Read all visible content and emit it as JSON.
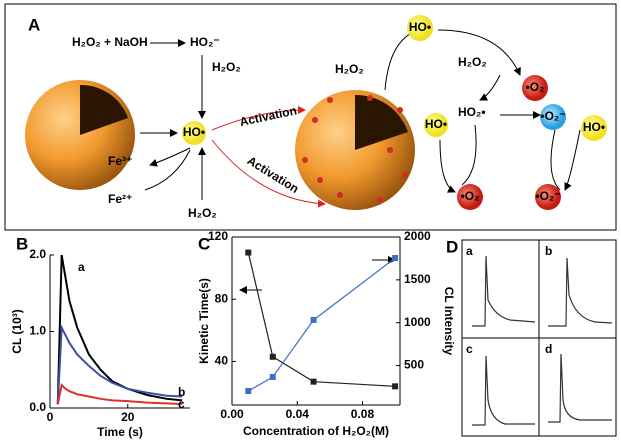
{
  "panel_a": {
    "label": "A",
    "reactant": "H₂O₂ + NaOH",
    "product": "HO₂⁻",
    "h2o2_top": "H₂O₂",
    "radical_center": "HO•",
    "fe3": "Fe³⁺",
    "fe2": "Fe²⁺",
    "h2o2_bottom": "H₂O₂",
    "activation_top": "Activation",
    "activation_bottom": "Activation",
    "h2o2_left": "H₂O₂",
    "radical_top": "HO•",
    "h2o2_right": "H₂O₂",
    "superoxide_top": "•O₂",
    "ho2": "HO₂•",
    "superoxide_anion": "•O₂⁻",
    "radical_right": "HO•",
    "radical_mid": "HO•",
    "oxygen_bottom_left": "•O₂",
    "oxygen_bottom_right": "•O₂⁻"
  },
  "chart_data": [
    {
      "type": "line",
      "panel_label": "B",
      "xlabel": "Time (s)",
      "ylabel": "CL (10³)",
      "xlim": [
        0,
        36
      ],
      "xticks": [
        0,
        20
      ],
      "ylim": [
        0,
        2.0
      ],
      "yticks": [
        {
          "value": 0,
          "label": "0.0"
        },
        {
          "value": 1,
          "label": "1.0"
        },
        {
          "value": 2,
          "label": "2.0"
        }
      ],
      "x": [
        2,
        3,
        4,
        5,
        7,
        10,
        13,
        16,
        20,
        25,
        30,
        34
      ],
      "series": [
        {
          "name": "a",
          "color": "#000000",
          "values": [
            0.05,
            2.0,
            1.7,
            1.4,
            1.05,
            0.7,
            0.5,
            0.35,
            0.25,
            0.17,
            0.12,
            0.1
          ]
        },
        {
          "name": "b",
          "color": "#3b4fa8",
          "values": [
            0.05,
            1.05,
            0.95,
            0.85,
            0.7,
            0.55,
            0.42,
            0.33,
            0.25,
            0.2,
            0.16,
            0.15
          ]
        },
        {
          "name": "c",
          "color": "#e0302a",
          "values": [
            0.05,
            0.3,
            0.25,
            0.22,
            0.18,
            0.15,
            0.12,
            0.1,
            0.09,
            0.07,
            0.06,
            0.05
          ]
        }
      ]
    },
    {
      "type": "line",
      "panel_label": "C",
      "xlabel": "Concentration of H₂O₂(M)",
      "ylabel": "Kinetic Time(s)",
      "y2label": "CL Intensity",
      "markers": true,
      "xlim": [
        0,
        0.103
      ],
      "xticks": [
        {
          "value": 0,
          "label": "0.00"
        },
        {
          "value": 0.04,
          "label": "0.04"
        },
        {
          "value": 0.08,
          "label": "0.08"
        }
      ],
      "ylim": [
        12,
        120
      ],
      "yticks": [
        40,
        80,
        120
      ],
      "y2lim": [
        40,
        2000
      ],
      "y2ticks": [
        500,
        1000,
        1500,
        2000
      ],
      "x": [
        0.01,
        0.025,
        0.05,
        0.1
      ],
      "series": [
        {
          "name": "Kinetic Time",
          "color": "#222222",
          "values": [
            110,
            43,
            27,
            24
          ]
        },
        {
          "name": "CL Intensity",
          "color": "#3d6fc7",
          "axis": "y2",
          "values": [
            203,
            367,
            1032,
            1755
          ]
        }
      ]
    }
  ],
  "panel_d": {
    "label": "D",
    "subpanels": [
      "a",
      "b",
      "c",
      "d"
    ]
  }
}
